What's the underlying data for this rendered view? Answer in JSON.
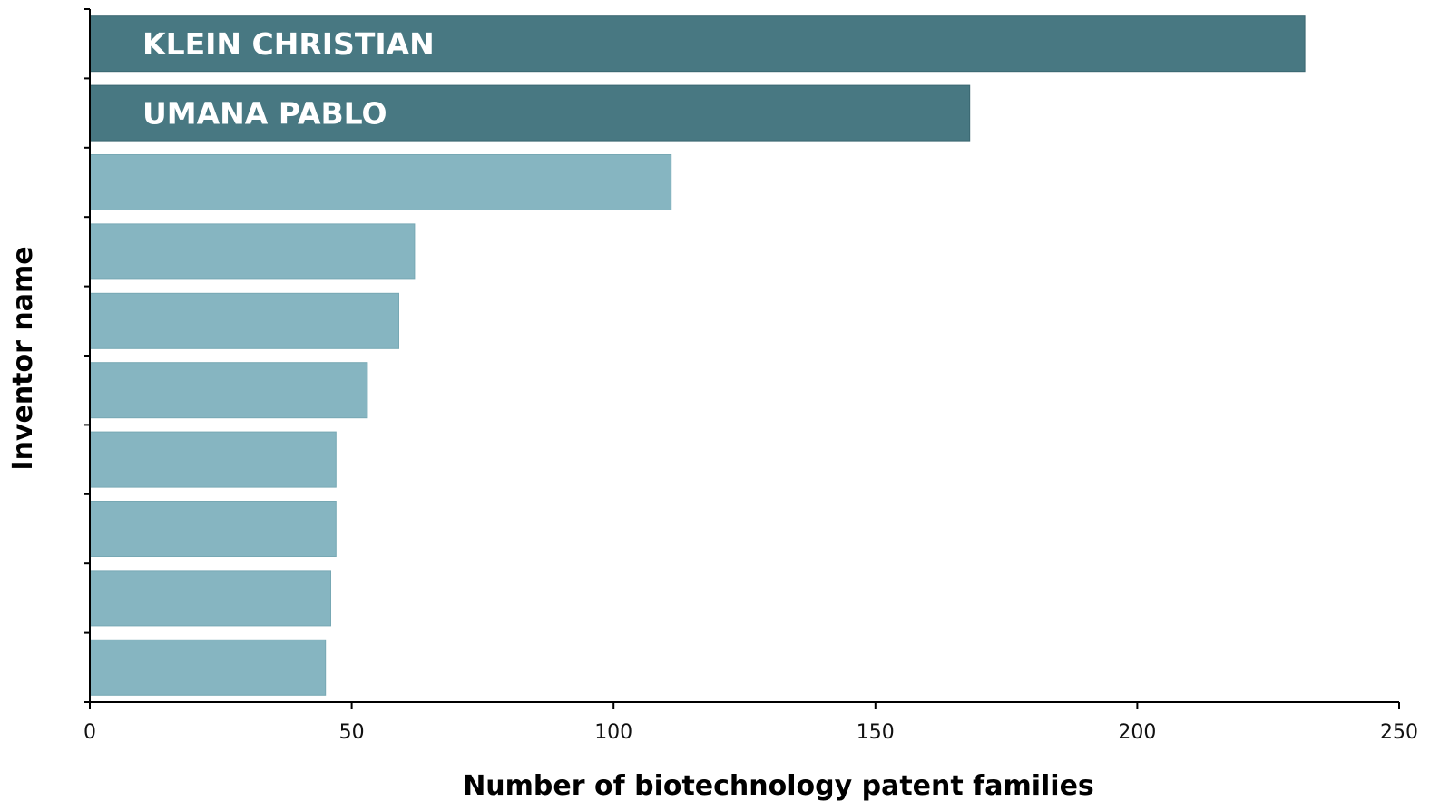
{
  "chart_data": {
    "type": "bar",
    "orientation": "horizontal",
    "title": "",
    "xlabel": "Number of biotechnology patent families",
    "ylabel": "Inventor name",
    "xlim": [
      0,
      250
    ],
    "xticks": [
      0,
      50,
      100,
      150,
      200,
      250
    ],
    "grid": false,
    "legend": "none",
    "categories": [
      "KLEIN CHRISTIAN",
      "UMANA PABLO",
      "",
      "",
      "",
      "",
      "",
      "",
      "",
      ""
    ],
    "values": [
      232,
      168,
      111,
      62,
      59,
      53,
      47,
      47,
      46,
      45
    ],
    "highlighted": [
      true,
      true,
      false,
      false,
      false,
      false,
      false,
      false,
      false,
      false
    ],
    "colors": {
      "highlight": "#487882",
      "normal": "#86b5c1",
      "axis": "#000000"
    }
  }
}
